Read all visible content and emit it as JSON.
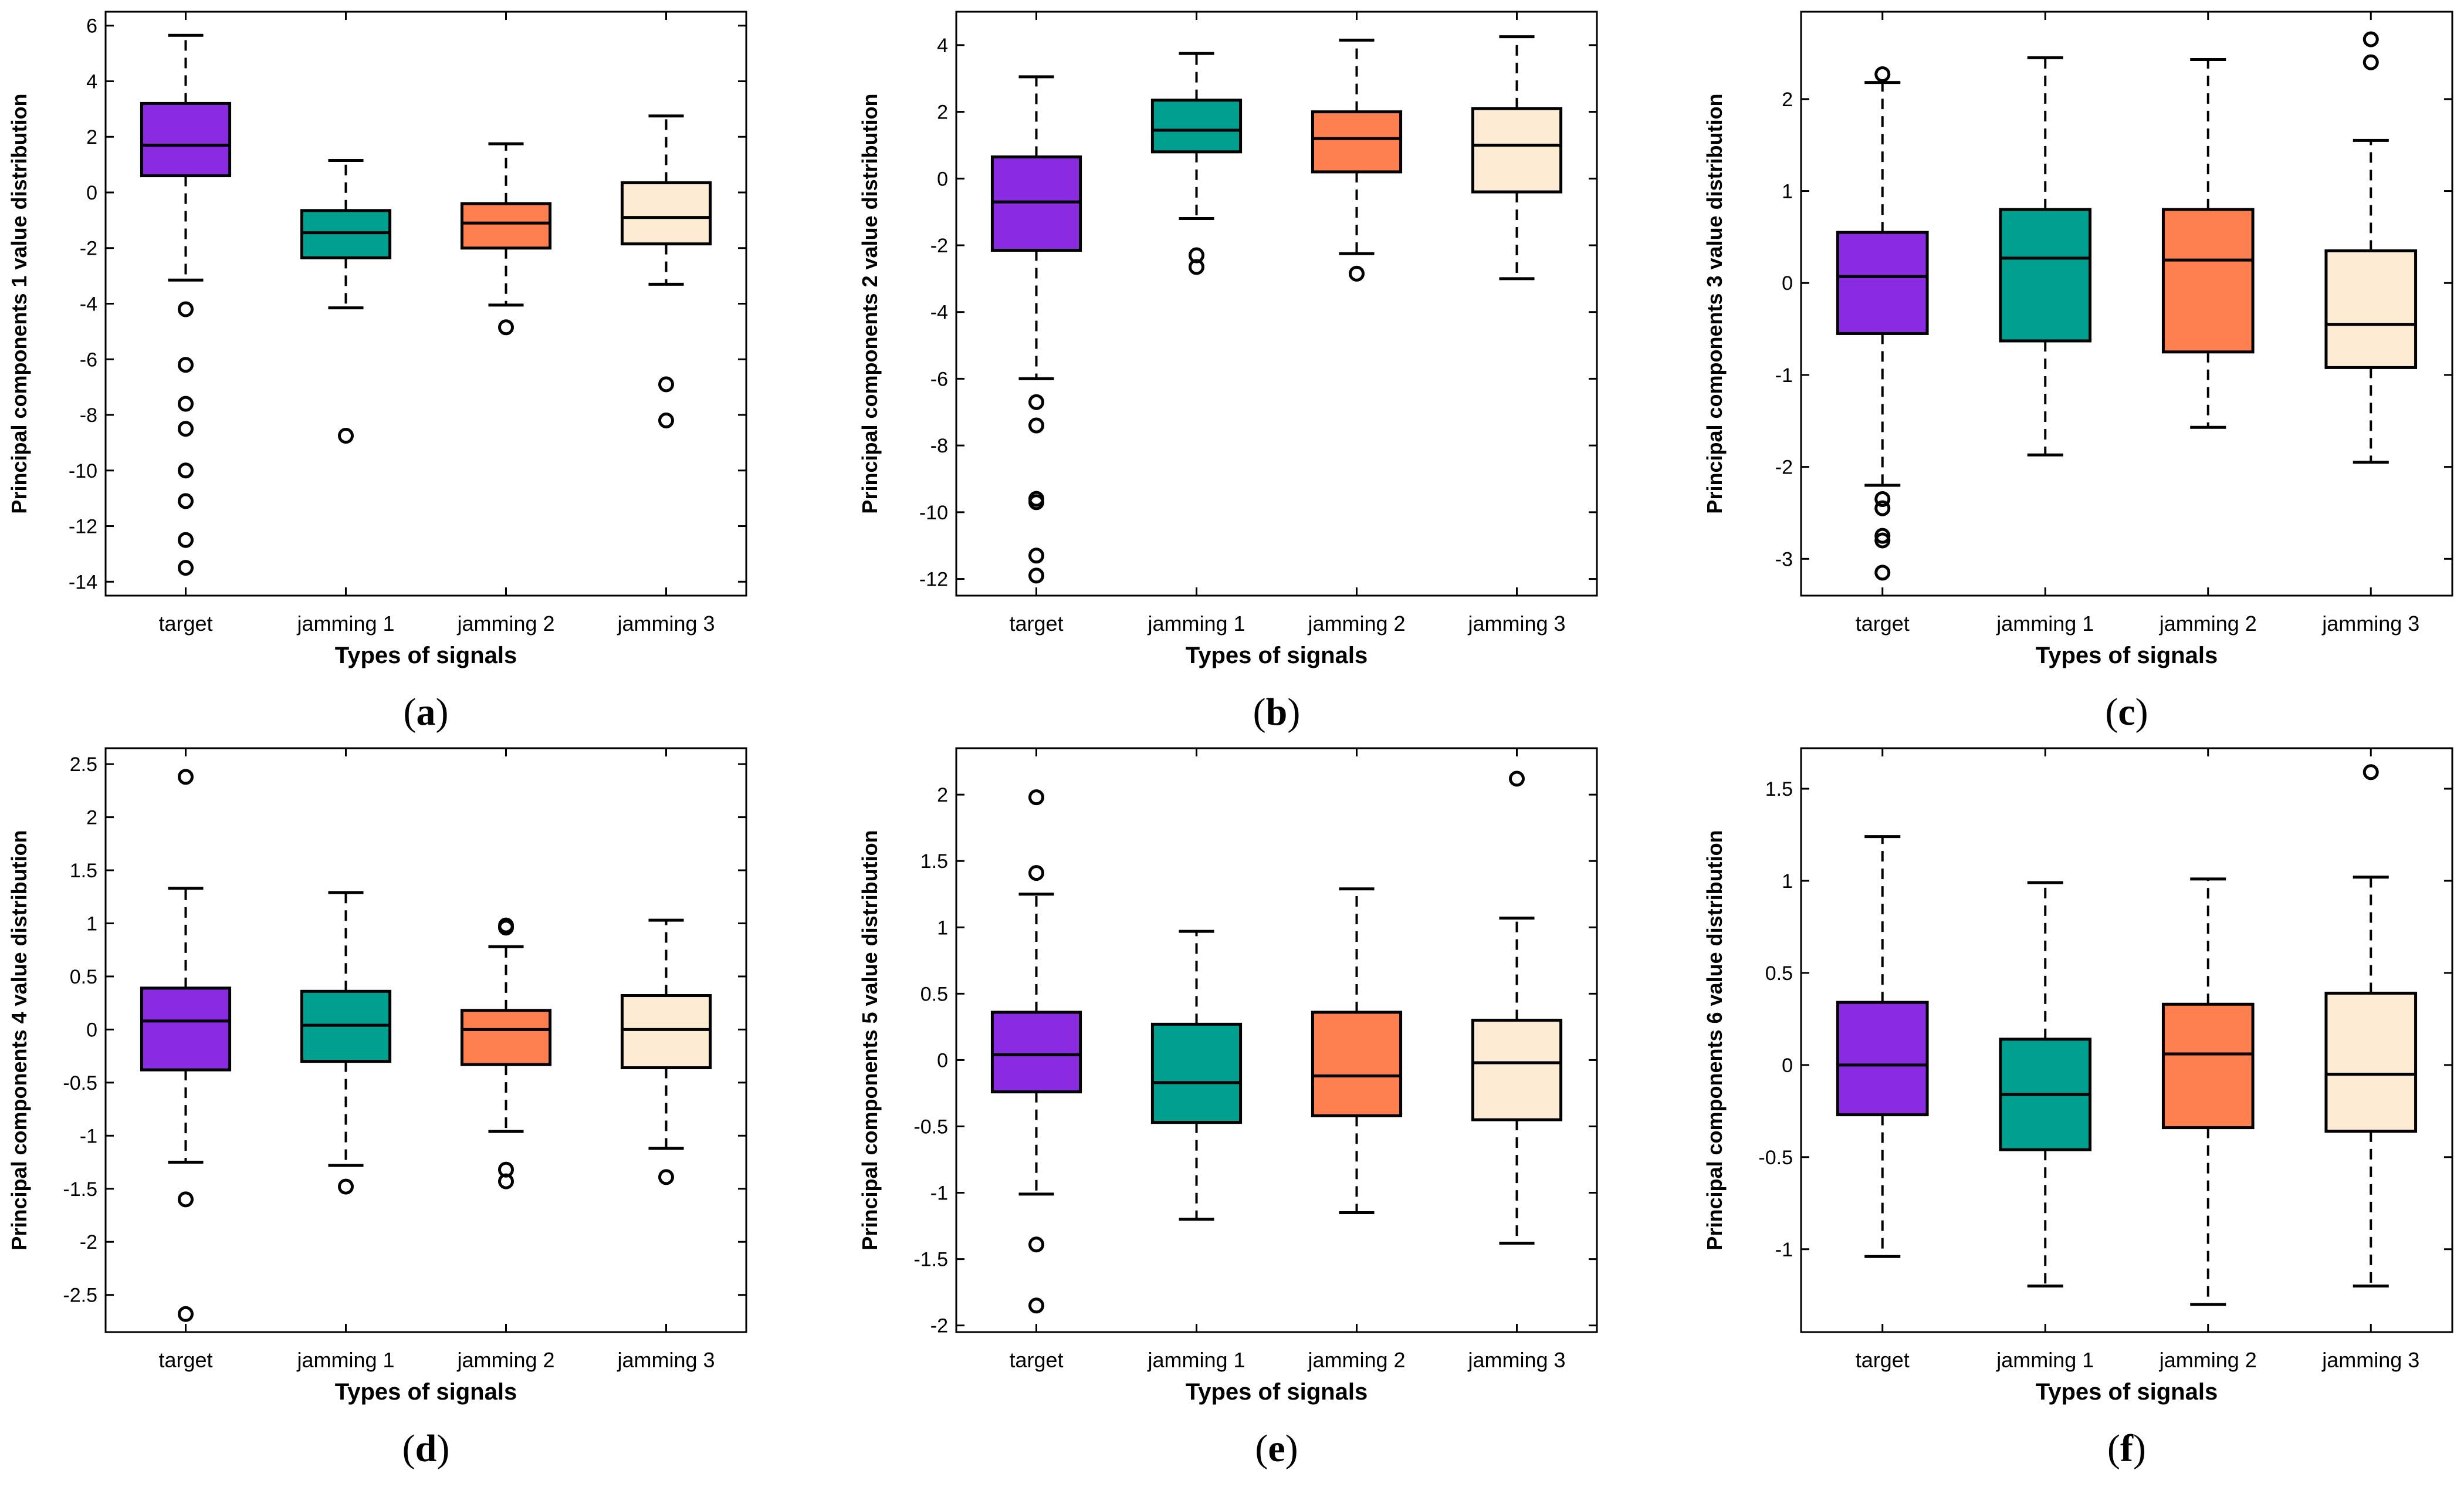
{
  "colors": {
    "target": "#8a2be2",
    "jamming 1": "#00a091",
    "jamming 2": "#ff7f4f",
    "jamming 3": "#fdebd3"
  },
  "chart_data": [
    {
      "type": "box",
      "panel_label": "(a)",
      "xlabel": "Types of signals",
      "ylabel": "Principal components 1 value distribution",
      "categories": [
        "target",
        "jamming 1",
        "jamming 2",
        "jamming 3"
      ],
      "ylim": [
        -14.5,
        6.5
      ],
      "yticks": [
        6,
        4,
        2,
        0,
        -2,
        -4,
        -6,
        -8,
        -10,
        -12,
        -14
      ],
      "boxes": [
        {
          "name": "target",
          "q1": 0.6,
          "median": 1.7,
          "q3": 3.2,
          "whisker_low": -3.15,
          "whisker_high": 5.65,
          "outliers": [
            -4.2,
            -6.2,
            -7.6,
            -8.5,
            -10,
            -11.1,
            -12.5,
            -13.5
          ]
        },
        {
          "name": "jamming 1",
          "q1": -2.35,
          "median": -1.45,
          "q3": -0.65,
          "whisker_low": -4.15,
          "whisker_high": 1.15,
          "outliers": [
            -8.75
          ]
        },
        {
          "name": "jamming 2",
          "q1": -2.0,
          "median": -1.1,
          "q3": -0.4,
          "whisker_low": -4.05,
          "whisker_high": 1.75,
          "outliers": [
            -4.85
          ]
        },
        {
          "name": "jamming 3",
          "q1": -1.85,
          "median": -0.9,
          "q3": 0.35,
          "whisker_low": -3.3,
          "whisker_high": 2.75,
          "outliers": [
            -6.9,
            -8.2
          ]
        }
      ]
    },
    {
      "type": "box",
      "panel_label": "(b)",
      "xlabel": "Types of signals",
      "ylabel": "Principal components 2 value distribution",
      "categories": [
        "target",
        "jamming 1",
        "jamming 2",
        "jamming 3"
      ],
      "ylim": [
        -12.5,
        5
      ],
      "yticks": [
        4,
        2,
        0,
        -2,
        -4,
        -6,
        -8,
        -10,
        -12
      ],
      "boxes": [
        {
          "name": "target",
          "q1": -2.15,
          "median": -0.7,
          "q3": 0.65,
          "whisker_low": -6.0,
          "whisker_high": 3.05,
          "outliers": [
            -6.7,
            -7.4,
            -9.6,
            -9.7,
            -11.3,
            -11.9
          ]
        },
        {
          "name": "jamming 1",
          "q1": 0.8,
          "median": 1.45,
          "q3": 2.35,
          "whisker_low": -1.2,
          "whisker_high": 3.75,
          "outliers": [
            -2.3,
            -2.65
          ]
        },
        {
          "name": "jamming 2",
          "q1": 0.2,
          "median": 1.2,
          "q3": 2.0,
          "whisker_low": -2.25,
          "whisker_high": 4.15,
          "outliers": [
            -2.85
          ]
        },
        {
          "name": "jamming 3",
          "q1": -0.4,
          "median": 1.0,
          "q3": 2.1,
          "whisker_low": -3.0,
          "whisker_high": 4.25,
          "outliers": []
        }
      ]
    },
    {
      "type": "box",
      "panel_label": "(c)",
      "xlabel": "Types of signals",
      "ylabel": "Principal components 3 value distribution",
      "categories": [
        "target",
        "jamming 1",
        "jamming 2",
        "jamming 3"
      ],
      "ylim": [
        -3.4,
        2.95
      ],
      "yticks": [
        2,
        1,
        0,
        -1,
        -2,
        -3
      ],
      "boxes": [
        {
          "name": "target",
          "q1": -0.55,
          "median": 0.07,
          "q3": 0.55,
          "whisker_low": -2.2,
          "whisker_high": 2.18,
          "outliers": [
            2.27,
            -2.35,
            -2.45,
            -2.75,
            -2.8,
            -3.15
          ]
        },
        {
          "name": "jamming 1",
          "q1": -0.63,
          "median": 0.27,
          "q3": 0.8,
          "whisker_low": -1.87,
          "whisker_high": 2.45,
          "outliers": []
        },
        {
          "name": "jamming 2",
          "q1": -0.75,
          "median": 0.25,
          "q3": 0.8,
          "whisker_low": -1.57,
          "whisker_high": 2.43,
          "outliers": []
        },
        {
          "name": "jamming 3",
          "q1": -0.92,
          "median": -0.45,
          "q3": 0.35,
          "whisker_low": -1.95,
          "whisker_high": 1.55,
          "outliers": [
            2.65,
            2.4
          ]
        }
      ]
    },
    {
      "type": "box",
      "panel_label": "(d)",
      "xlabel": "Types of signals",
      "ylabel": "Principal components 4 value distribution",
      "categories": [
        "target",
        "jamming 1",
        "jamming 2",
        "jamming 3"
      ],
      "ylim": [
        -2.85,
        2.65
      ],
      "yticks": [
        2.5,
        2,
        1.5,
        1,
        0.5,
        0,
        -0.5,
        -1,
        -1.5,
        -2,
        -2.5
      ],
      "boxes": [
        {
          "name": "target",
          "q1": -0.38,
          "median": 0.08,
          "q3": 0.39,
          "whisker_low": -1.25,
          "whisker_high": 1.33,
          "outliers": [
            2.38,
            -1.6,
            -2.68
          ]
        },
        {
          "name": "jamming 1",
          "q1": -0.3,
          "median": 0.04,
          "q3": 0.36,
          "whisker_low": -1.28,
          "whisker_high": 1.29,
          "outliers": [
            -1.48
          ]
        },
        {
          "name": "jamming 2",
          "q1": -0.33,
          "median": 0.0,
          "q3": 0.18,
          "whisker_low": -0.96,
          "whisker_high": 0.78,
          "outliers": [
            0.96,
            0.98,
            -1.32,
            -1.43
          ]
        },
        {
          "name": "jamming 3",
          "q1": -0.36,
          "median": 0.0,
          "q3": 0.32,
          "whisker_low": -1.12,
          "whisker_high": 1.03,
          "outliers": [
            -1.39
          ]
        }
      ]
    },
    {
      "type": "box",
      "panel_label": "(e)",
      "xlabel": "Types of signals",
      "ylabel": "Principal components 5 value distribution",
      "categories": [
        "target",
        "jamming 1",
        "jamming 2",
        "jamming 3"
      ],
      "ylim": [
        -2.05,
        2.35
      ],
      "yticks": [
        2,
        1.5,
        1,
        0.5,
        0,
        -0.5,
        -1,
        -1.5,
        -2
      ],
      "boxes": [
        {
          "name": "target",
          "q1": -0.24,
          "median": 0.04,
          "q3": 0.36,
          "whisker_low": -1.01,
          "whisker_high": 1.25,
          "outliers": [
            1.98,
            1.41,
            -1.39,
            -1.85
          ]
        },
        {
          "name": "jamming 1",
          "q1": -0.47,
          "median": -0.17,
          "q3": 0.27,
          "whisker_low": -1.2,
          "whisker_high": 0.97,
          "outliers": []
        },
        {
          "name": "jamming 2",
          "q1": -0.42,
          "median": -0.12,
          "q3": 0.36,
          "whisker_low": -1.15,
          "whisker_high": 1.29,
          "outliers": []
        },
        {
          "name": "jamming 3",
          "q1": -0.45,
          "median": -0.02,
          "q3": 0.3,
          "whisker_low": -1.38,
          "whisker_high": 1.07,
          "outliers": [
            2.12
          ]
        }
      ]
    },
    {
      "type": "box",
      "panel_label": "(f)",
      "xlabel": "Types of signals",
      "ylabel": "Principal components 6 value distribution",
      "categories": [
        "target",
        "jamming 1",
        "jamming 2",
        "jamming 3"
      ],
      "ylim": [
        -1.45,
        1.72
      ],
      "yticks": [
        1.5,
        1,
        0.5,
        0,
        -0.5,
        -1
      ],
      "boxes": [
        {
          "name": "target",
          "q1": -0.27,
          "median": 0.0,
          "q3": 0.34,
          "whisker_low": -1.04,
          "whisker_high": 1.24,
          "outliers": []
        },
        {
          "name": "jamming 1",
          "q1": -0.46,
          "median": -0.16,
          "q3": 0.14,
          "whisker_low": -1.2,
          "whisker_high": 0.99,
          "outliers": []
        },
        {
          "name": "jamming 2",
          "q1": -0.34,
          "median": 0.06,
          "q3": 0.33,
          "whisker_low": -1.3,
          "whisker_high": 1.01,
          "outliers": []
        },
        {
          "name": "jamming 3",
          "q1": -0.36,
          "median": -0.05,
          "q3": 0.39,
          "whisker_low": -1.2,
          "whisker_high": 1.02,
          "outliers": [
            1.59
          ]
        }
      ]
    }
  ]
}
